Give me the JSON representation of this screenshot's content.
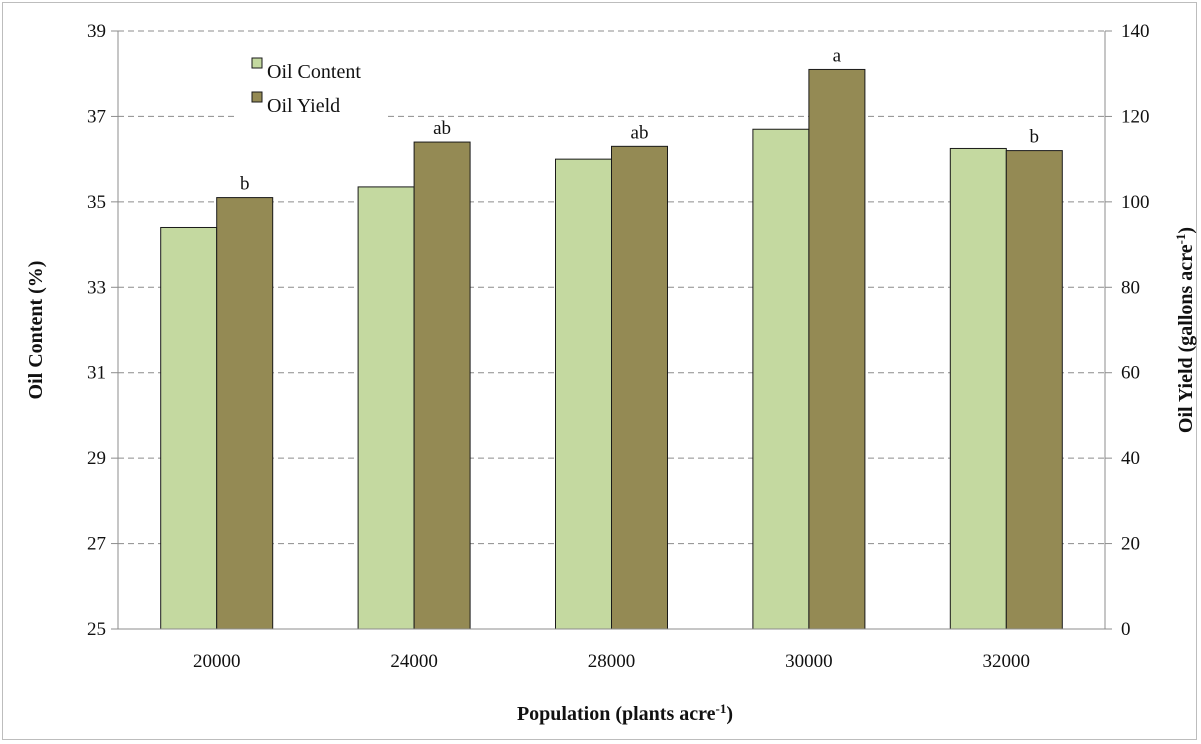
{
  "chart_data": {
    "type": "bar",
    "categories": [
      "20000",
      "24000",
      "28000",
      "30000",
      "32000"
    ],
    "xlabel": "Population (plants acre",
    "xlabel_sup": "-1",
    "xlabel_suffix": ")",
    "ylabel_left": "Oil Content (%)",
    "ylabel_right": "Oil Yield (gallons acre",
    "ylabel_right_sup": "-1",
    "ylabel_right_suffix": ")",
    "ylim_left": [
      25,
      39
    ],
    "ylim_right": [
      0,
      140
    ],
    "yticks_left": [
      "25",
      "27",
      "29",
      "31",
      "33",
      "35",
      "37",
      "39"
    ],
    "yticks_right": [
      "0",
      "20",
      "40",
      "60",
      "80",
      "100",
      "120",
      "140"
    ],
    "grid": true,
    "legend_position": "top-left",
    "series": [
      {
        "name": "Oil Content",
        "axis": "left",
        "color": "#c4d9a0",
        "values": [
          34.4,
          35.35,
          36.0,
          36.7,
          36.25
        ]
      },
      {
        "name": "Oil Yield",
        "axis": "right",
        "color": "#948a54",
        "values": [
          101,
          114,
          113,
          131,
          112
        ],
        "labels": [
          "b",
          "ab",
          "ab",
          "a",
          "b"
        ]
      }
    ]
  }
}
